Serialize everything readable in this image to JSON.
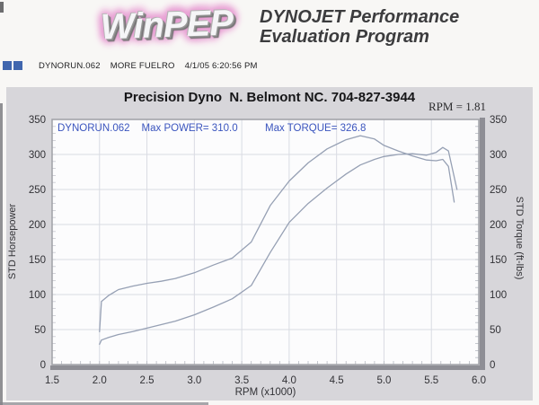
{
  "header": {
    "logo_text": "WinPEP",
    "app_title_line1": "DYNOJET Performance",
    "app_title_line2": "Evaluation Program"
  },
  "run_info": {
    "file": "DYNORUN.062",
    "note": "MORE FUELRO",
    "datetime": "4/1/05 6:20:56 PM",
    "swatch_color": "#4066ae"
  },
  "chart_data": {
    "type": "line",
    "title": "Precision Dyno  N. Belmont NC. 704-827-3944",
    "rpm_readout_label": "RPM =",
    "rpm_readout_value": "1.81",
    "xlabel": "RPM (x1000)",
    "ylabel_left": "STD Horsepower",
    "ylabel_right": "STD Torque (ft-lbs)",
    "xlim": [
      1.5,
      6.0
    ],
    "ylim": [
      0,
      350
    ],
    "xticks": [
      1.5,
      2.0,
      2.5,
      3.0,
      3.5,
      4.0,
      4.5,
      5.0,
      5.5,
      6.0
    ],
    "yticks": [
      0,
      50,
      100,
      150,
      200,
      250,
      300,
      350
    ],
    "x_minor_step": 0.1,
    "y_minor_step": 10,
    "grid": true,
    "legend_position": "top-inside",
    "line_color": "#96a0b4",
    "legend": {
      "run": "DYNORUN.062",
      "max_power": "Max POWER= 310.0",
      "max_torque": "Max TORQUE= 326.8"
    },
    "max_power": 310.0,
    "max_torque": 326.8,
    "series": [
      {
        "name": "STD Horsepower",
        "x": [
          2.0,
          2.02,
          2.1,
          2.2,
          2.35,
          2.5,
          2.65,
          2.8,
          3.0,
          3.2,
          3.4,
          3.6,
          3.8,
          4.0,
          4.2,
          4.4,
          4.6,
          4.75,
          4.9,
          5.0,
          5.15,
          5.3,
          5.45,
          5.55,
          5.62,
          5.68,
          5.77
        ],
        "values": [
          29,
          35,
          39,
          43,
          47,
          52,
          57,
          62,
          71,
          82,
          94,
          113,
          160,
          203,
          230,
          252,
          272,
          285,
          293,
          297,
          300,
          301,
          299,
          303,
          310,
          305,
          250
        ]
      },
      {
        "name": "STD Torque",
        "x": [
          2.0,
          2.02,
          2.1,
          2.2,
          2.35,
          2.5,
          2.65,
          2.8,
          3.0,
          3.2,
          3.4,
          3.6,
          3.8,
          4.0,
          4.2,
          4.4,
          4.6,
          4.75,
          4.9,
          5.0,
          5.15,
          5.3,
          5.45,
          5.55,
          5.62,
          5.68,
          5.74
        ],
        "values": [
          47,
          90,
          99,
          107,
          112,
          116,
          119,
          123,
          131,
          142,
          152,
          175,
          227,
          262,
          288,
          308,
          321,
          326.8,
          322,
          313,
          305,
          298,
          292,
          291,
          293,
          283,
          232
        ]
      }
    ]
  }
}
